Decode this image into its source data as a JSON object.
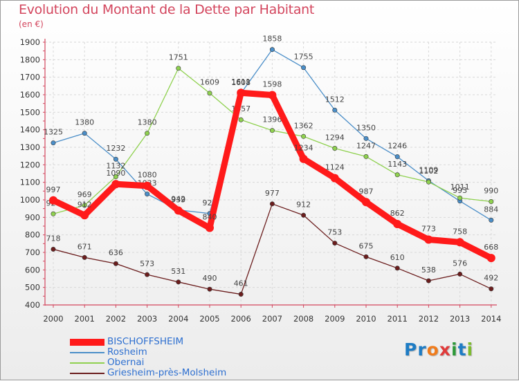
{
  "header": {
    "title": "Evolution du Montant de la Dette par Habitant",
    "unit": "(en €)"
  },
  "logo": {
    "text": "Proxiti",
    "letters": [
      {
        "ch": "P",
        "color": "#1e7cc4"
      },
      {
        "ch": "r",
        "color": "#1e7cc4"
      },
      {
        "ch": "o",
        "color": "#f07c1c"
      },
      {
        "ch": "x",
        "color": "#e03a3a"
      },
      {
        "ch": "i",
        "color": "#2e9a3a"
      },
      {
        "ch": "t",
        "color": "#1e7cc4"
      },
      {
        "ch": "i",
        "color": "#7dbb2e"
      }
    ]
  },
  "chart_data": {
    "type": "line",
    "title": "Evolution du Montant de la Dette par Habitant",
    "subtitle": "(en €)",
    "categories": [
      "2000",
      "2001",
      "2002",
      "2003",
      "2004",
      "2005",
      "2006",
      "2007",
      "2008",
      "2009",
      "2010",
      "2011",
      "2012",
      "2013",
      "2014"
    ],
    "ylim": [
      400,
      1900
    ],
    "yticks": [
      400,
      500,
      600,
      700,
      800,
      900,
      1000,
      1100,
      1200,
      1300,
      1400,
      1500,
      1600,
      1700,
      1800,
      1900
    ],
    "grid": true,
    "legend_position": "bottom-left",
    "series": [
      {
        "name": "Rosheim",
        "color": "#4a8ec8",
        "weight": "thin",
        "values": [
          1325,
          1380,
          1232,
          1033,
          942,
          922,
          1608,
          1858,
          1755,
          1512,
          1350,
          1246,
          1109,
          993,
          884
        ]
      },
      {
        "name": "Obernai",
        "color": "#8fd14f",
        "weight": "thin",
        "values": [
          920,
          969,
          1132,
          1380,
          1751,
          1609,
          1457,
          1396,
          1362,
          1294,
          1247,
          1143,
          1102,
          1011,
          990
        ]
      },
      {
        "name": "Griesheim-près-Molsheim",
        "color": "#6b1d1d",
        "weight": "thin",
        "values": [
          718,
          671,
          636,
          573,
          531,
          490,
          461,
          977,
          912,
          753,
          675,
          610,
          538,
          576,
          492
        ]
      },
      {
        "name": "BISCHOFFSHEIM",
        "color": "#ff1a1a",
        "weight": "thick",
        "values": [
          997,
          912,
          1090,
          1080,
          939,
          840,
          1611,
          1598,
          1234,
          1124,
          987,
          862,
          773,
          758,
          668
        ]
      }
    ]
  }
}
